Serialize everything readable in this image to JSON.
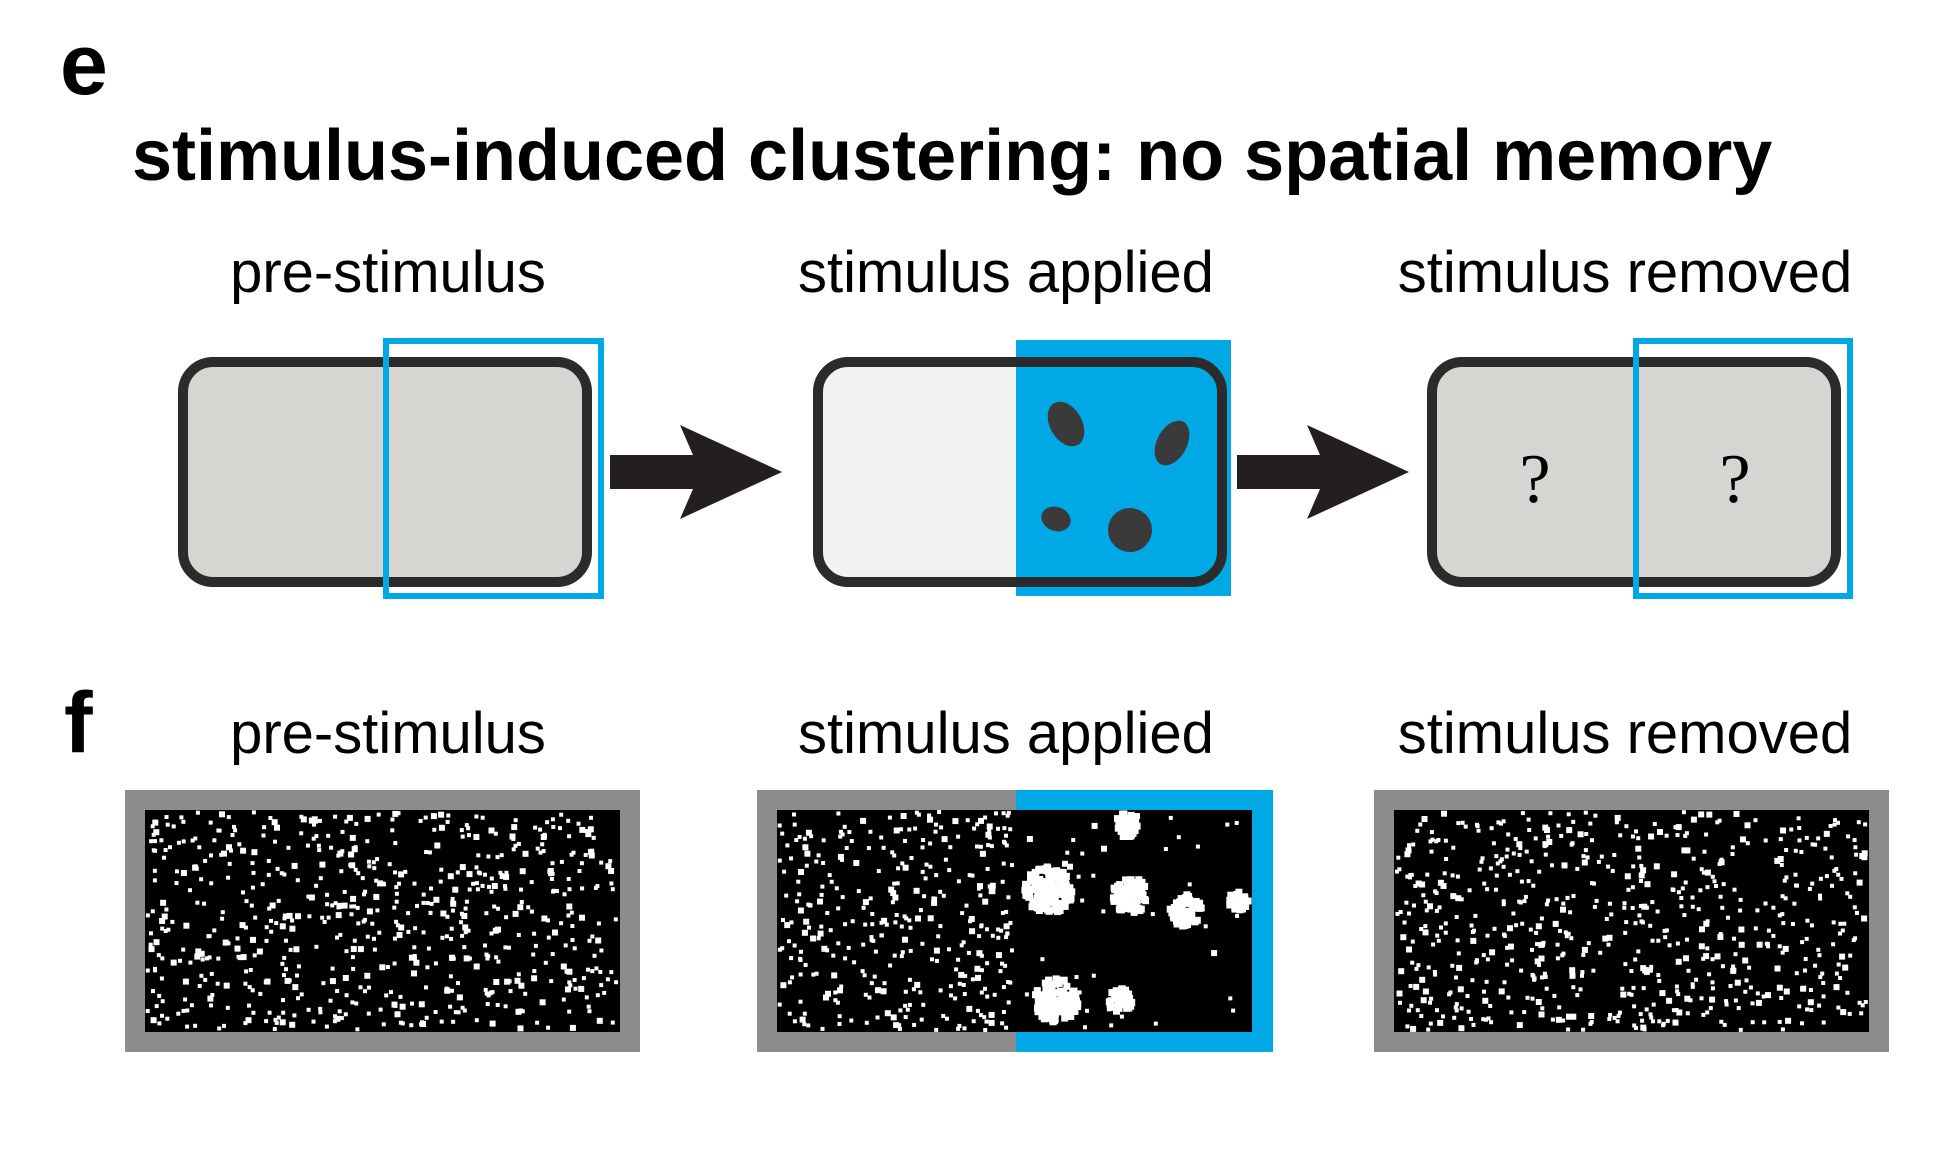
{
  "panel_e": {
    "letter": "e",
    "title": "stimulus-induced clustering: no spatial memory",
    "stages": [
      {
        "label": "pre-stimulus"
      },
      {
        "label": "stimulus applied"
      },
      {
        "label": "stimulus removed",
        "marks": [
          "?",
          "?"
        ]
      }
    ]
  },
  "panel_f": {
    "letter": "f",
    "stages": [
      {
        "label": "pre-stimulus"
      },
      {
        "label": "stimulus applied"
      },
      {
        "label": "stimulus removed"
      }
    ]
  },
  "colors": {
    "stimulus_blue": "#00a9e6",
    "region_gray": "#d5d5d2",
    "region_light": "#f2f2f0",
    "outline": "#2b2b2b",
    "arrow": "#231f20",
    "cluster": "#3a3a3a",
    "frame_gray": "#8c8c8c"
  }
}
